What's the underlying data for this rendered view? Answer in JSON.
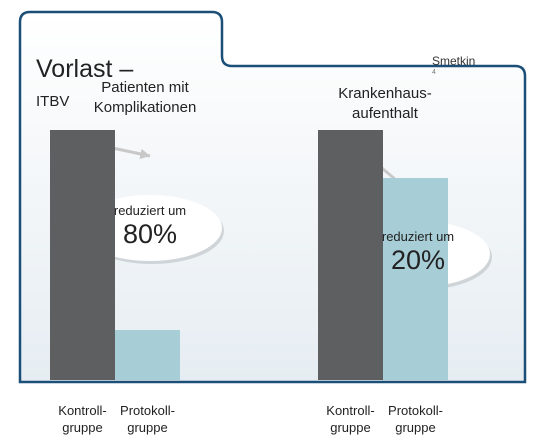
{
  "chart_data": {
    "type": "bar",
    "title": "Vorlast –",
    "title_unit": "ITBV",
    "source": "Smetkin",
    "source_ref": "4",
    "colors": [
      "#5e5f61",
      "#a7cdd6"
    ],
    "groups": [
      {
        "label": "Patienten mit\nKomplikationen",
        "categories": [
          "Kontroll-\ngruppe",
          "Protokoll-\ngruppe"
        ],
        "values": [
          100,
          20
        ],
        "annotation": "reduziert um",
        "annotation_value": "80%"
      },
      {
        "label": "Krankenhaus-\naufenthalt",
        "categories": [
          "Kontroll-\ngruppe",
          "Protokoll-\ngruppe"
        ],
        "values": [
          100,
          81
        ],
        "annotation": "reduziert um",
        "annotation_value": "20%"
      }
    ]
  }
}
